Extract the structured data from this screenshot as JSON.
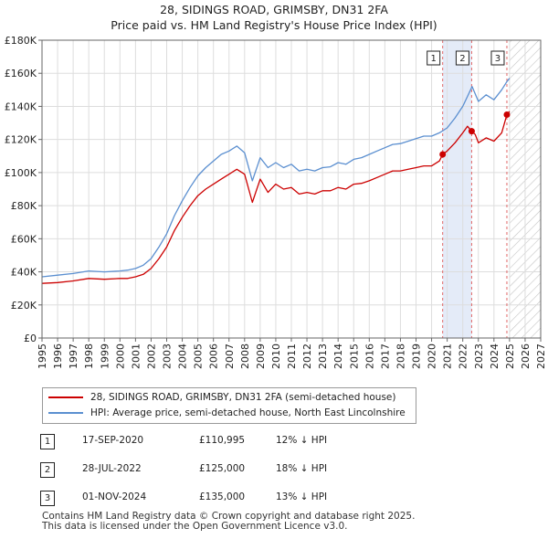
{
  "title_line1": "28, SIDINGS ROAD, GRIMSBY, DN31 2FA",
  "title_line2": "Price paid vs. HM Land Registry's House Price Index (HPI)",
  "legend": {
    "property_label": "28, SIDINGS ROAD, GRIMSBY, DN31 2FA (semi-detached house)",
    "hpi_label": "HPI: Average price, semi-detached house, North East Lincolnshire"
  },
  "sales": [
    {
      "num": "1",
      "date": "17-SEP-2020",
      "price": "£110,995",
      "hpi": "12% ↓ HPI"
    },
    {
      "num": "2",
      "date": "28-JUL-2022",
      "price": "£125,000",
      "hpi": "18% ↓ HPI"
    },
    {
      "num": "3",
      "date": "01-NOV-2024",
      "price": "£135,000",
      "hpi": "13% ↓ HPI"
    }
  ],
  "footer_line1": "Contains HM Land Registry data © Crown copyright and database right 2025.",
  "footer_line2": "This data is licensed under the Open Government Licence v3.0.",
  "colors": {
    "property": "#cc0000",
    "hpi": "#5b8fd0",
    "sale_line": "#e06666",
    "shade": "#dde6f6",
    "grid": "#dddddd"
  },
  "chart_data": {
    "type": "line",
    "title": "28, SIDINGS ROAD, GRIMSBY, DN31 2FA Price paid vs. HM Land Registry's House Price Index (HPI)",
    "xlabel": "",
    "ylabel": "",
    "xlim": [
      1995,
      2027
    ],
    "ylim": [
      0,
      180000
    ],
    "y_ticks": [
      0,
      20000,
      40000,
      60000,
      80000,
      100000,
      120000,
      140000,
      160000,
      180000
    ],
    "y_tick_labels": [
      "£0",
      "£20K",
      "£40K",
      "£60K",
      "£80K",
      "£100K",
      "£120K",
      "£140K",
      "£160K",
      "£180K"
    ],
    "x_ticks": [
      1995,
      1996,
      1997,
      1998,
      1999,
      2000,
      2001,
      2002,
      2003,
      2004,
      2005,
      2006,
      2007,
      2008,
      2009,
      2010,
      2011,
      2012,
      2013,
      2014,
      2015,
      2016,
      2017,
      2018,
      2019,
      2020,
      2021,
      2022,
      2023,
      2024,
      2025,
      2026,
      2027
    ],
    "x_tick_labels": [
      "1995",
      "1996",
      "1997",
      "1998",
      "1999",
      "2000",
      "2001",
      "2002",
      "2003",
      "2004",
      "2005",
      "2006",
      "2007",
      "2008",
      "2009",
      "2010",
      "2011",
      "2012",
      "2013",
      "2014",
      "2015",
      "2016",
      "2017",
      "2018",
      "2019",
      "2020",
      "2021",
      "2022",
      "2023",
      "2024",
      "2025",
      "2026",
      "2027"
    ],
    "legend_position": "bottom-left",
    "series": [
      {
        "name": "28, SIDINGS ROAD, GRIMSBY, DN31 2FA (semi-detached house)",
        "x": [
          1995.0,
          1996.0,
          1997.0,
          1998.0,
          1999.0,
          2000.0,
          2000.5,
          2001.0,
          2001.5,
          2002.0,
          2002.5,
          2003.0,
          2003.5,
          2004.0,
          2004.5,
          2005.0,
          2005.5,
          2006.0,
          2006.5,
          2007.0,
          2007.5,
          2008.0,
          2008.5,
          2009.0,
          2009.5,
          2010.0,
          2010.5,
          2011.0,
          2011.5,
          2012.0,
          2012.5,
          2013.0,
          2013.5,
          2014.0,
          2014.5,
          2015.0,
          2015.5,
          2016.0,
          2016.5,
          2017.0,
          2017.5,
          2018.0,
          2018.5,
          2019.0,
          2019.5,
          2020.0,
          2020.5,
          2020.71,
          2021.0,
          2021.5,
          2022.0,
          2022.3,
          2022.57,
          2022.8,
          2023.0,
          2023.5,
          2024.0,
          2024.5,
          2024.83,
          2025.0
        ],
        "values": [
          33000,
          33500,
          34500,
          36000,
          35500,
          36000,
          36000,
          37000,
          38500,
          42000,
          48000,
          55000,
          65000,
          73000,
          80000,
          86000,
          90000,
          93000,
          96000,
          99000,
          102000,
          99000,
          82000,
          96000,
          88000,
          93000,
          90000,
          91000,
          87000,
          88000,
          87000,
          89000,
          89000,
          91000,
          90000,
          93000,
          93500,
          95000,
          97000,
          99000,
          101000,
          101000,
          102000,
          103000,
          104000,
          104000,
          107000,
          110995,
          113000,
          118000,
          124000,
          128000,
          125000,
          123000,
          118000,
          121000,
          119000,
          124000,
          135000,
          137000
        ]
      },
      {
        "name": "HPI: Average price, semi-detached house, North East Lincolnshire",
        "x": [
          1995.0,
          1996.0,
          1997.0,
          1998.0,
          1999.0,
          2000.0,
          2000.5,
          2001.0,
          2001.5,
          2002.0,
          2002.5,
          2003.0,
          2003.5,
          2004.0,
          2004.5,
          2005.0,
          2005.5,
          2006.0,
          2006.5,
          2007.0,
          2007.5,
          2008.0,
          2008.5,
          2009.0,
          2009.5,
          2010.0,
          2010.5,
          2011.0,
          2011.5,
          2012.0,
          2012.5,
          2013.0,
          2013.5,
          2014.0,
          2014.5,
          2015.0,
          2015.5,
          2016.0,
          2016.5,
          2017.0,
          2017.5,
          2018.0,
          2018.5,
          2019.0,
          2019.5,
          2020.0,
          2020.5,
          2021.0,
          2021.5,
          2022.0,
          2022.3,
          2022.6,
          2023.0,
          2023.5,
          2024.0,
          2024.5,
          2024.83,
          2025.0
        ],
        "values": [
          37000,
          38000,
          39000,
          40500,
          40000,
          40500,
          41000,
          42000,
          44000,
          48000,
          55000,
          63000,
          74000,
          83000,
          91000,
          98000,
          103000,
          107000,
          111000,
          113000,
          116000,
          112000,
          95000,
          109000,
          103000,
          106000,
          103000,
          105000,
          101000,
          102000,
          101000,
          103000,
          103500,
          106000,
          105000,
          108000,
          109000,
          111000,
          113000,
          115000,
          117000,
          117500,
          119000,
          120500,
          122000,
          122000,
          124000,
          127000,
          133000,
          140000,
          146000,
          152000,
          143000,
          147000,
          144000,
          150000,
          155000,
          157000
        ]
      }
    ],
    "sale_markers": [
      {
        "label": "1",
        "x": 2020.71,
        "value": 110995
      },
      {
        "label": "2",
        "x": 2022.57,
        "value": 125000
      },
      {
        "label": "3",
        "x": 2024.83,
        "value": 135000
      }
    ],
    "shaded_ranges": [
      [
        2020.71,
        2022.57
      ]
    ],
    "hatched_range": [
      2025.0,
      2027.0
    ]
  }
}
